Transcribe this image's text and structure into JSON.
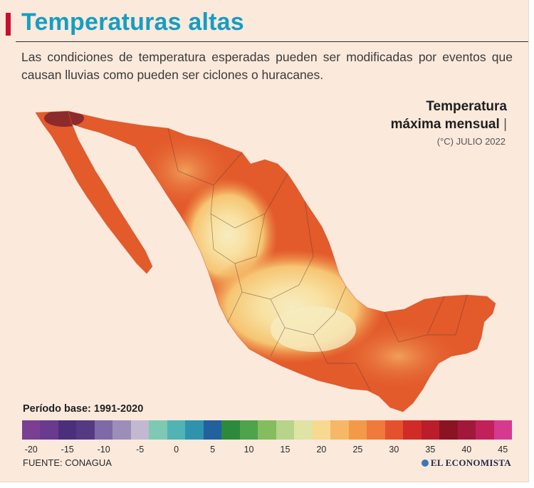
{
  "header": {
    "title": "Temperaturas altas",
    "subtitle": "Las condiciones de temperatura esperadas pueden ser modificadas por eventos que causan lluvias como pueden ser ciclones o huracanes."
  },
  "legend": {
    "title_line1": "Temperatura",
    "title_line2": "máxima mensual",
    "separator": "|",
    "unit_period": "(°C) JULIO 2022"
  },
  "scale": {
    "base_period": "Período base: 1991-2020",
    "colors": [
      "#7a3f92",
      "#6a3a90",
      "#4b2f7d",
      "#553985",
      "#7e6aa8",
      "#9c8eb9",
      "#c3b8d1",
      "#7ec9b3",
      "#52b3b4",
      "#2f93b0",
      "#23609e",
      "#2d8a3c",
      "#4fa34b",
      "#84bd5d",
      "#b7d48a",
      "#dfe3a4",
      "#f7d98f",
      "#f6b866",
      "#f29a48",
      "#ef7a3b",
      "#e4522d",
      "#d02b26",
      "#b91e2a",
      "#8a1421",
      "#a2183a",
      "#c2205b",
      "#d63990"
    ],
    "tick_labels": [
      "-20",
      "-15",
      "-10",
      "-5",
      "0",
      "5",
      "10",
      "15",
      "20",
      "25",
      "30",
      "35",
      "40",
      "45"
    ]
  },
  "footer": {
    "source": "FUENTE: CONAGUA",
    "brand": "EL ECONOMISTA"
  },
  "map": {
    "hottest_color": "#8d2a2b",
    "hot_color": "#e35a2b",
    "warm_color": "#ef8f45",
    "mild_color": "#f6c573",
    "cool_color": "#f8e1a2",
    "coolest_color": "#f6ecc0",
    "border_color": "#5a3a30"
  }
}
